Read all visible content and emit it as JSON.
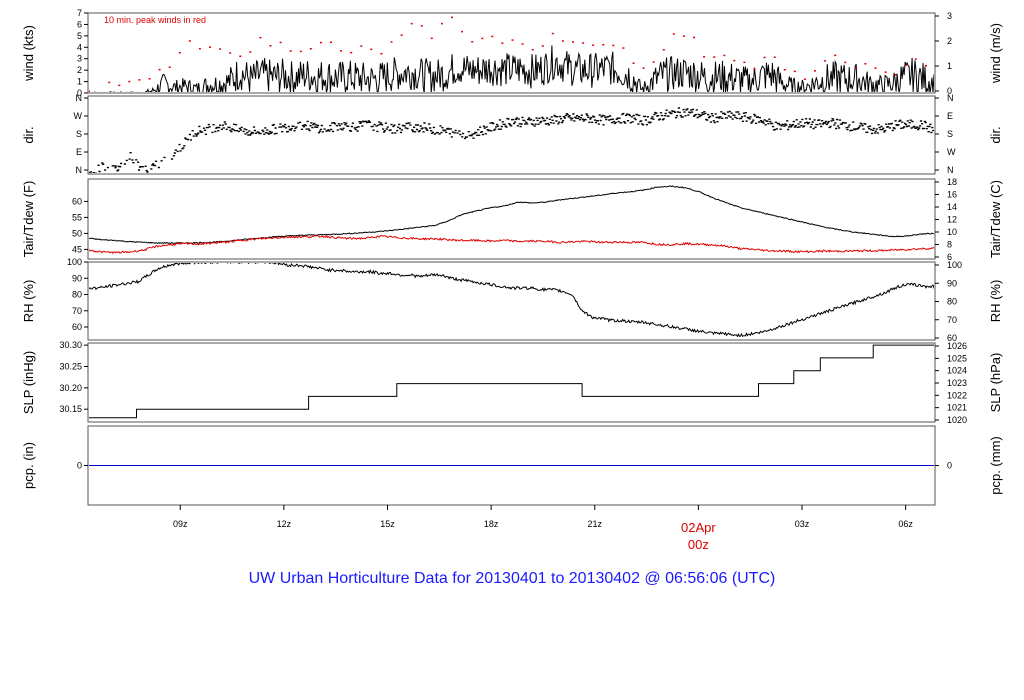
{
  "title": "UW Urban Horticulture Data for 20130401  to  20130402 @ 06:56:06  (UTC)",
  "colors": {
    "main": "#000000",
    "accent": "#e00000",
    "baseline": "#0000cc",
    "title": "#1a1aff",
    "frame": "#555555"
  },
  "chart_data": [
    {
      "type": "line",
      "panel": "wind",
      "ylabel_left": "wind (kts)",
      "ylabel_right": "wind (m/s)",
      "annotation": "10 min. peak winds in red",
      "ylim": [
        0,
        7
      ],
      "ticks_left": [
        "0",
        "1",
        "2",
        "3",
        "4",
        "5",
        "6",
        "7"
      ],
      "ticks_right": [
        "0",
        "1",
        "2",
        "3"
      ],
      "series": [
        {
          "values": [
            0,
            0,
            0,
            0,
            0,
            0,
            0.2,
            0.8,
            0.5,
            0.6,
            0.4,
            0.7,
            0.8,
            1.0,
            1.8,
            1.2,
            1.6,
            1.4,
            1.5,
            1.3,
            1.6,
            1.4,
            1.5,
            1.3,
            1.4,
            1.3,
            1.2,
            1.3,
            1.6,
            1.8,
            1.8,
            1.5,
            1.5,
            1.7,
            2.3,
            2.0,
            2.0,
            2.2,
            2.1,
            2.0,
            2.1,
            1.9,
            2.2,
            2.8,
            2.3,
            2.0,
            2.0,
            2.0,
            2.2,
            1.9,
            1.5,
            0.3,
            1.0,
            1.6,
            1.7,
            1.8,
            1.6,
            1.3,
            1.4,
            1.3,
            1.2,
            1.0,
            1.5,
            1.6,
            0.8,
            0.6,
            0.5,
            0.9,
            1.2,
            1.3,
            1.2,
            1.2,
            0.8,
            0.7,
            0.8,
            1.3,
            1.6,
            1.2,
            0.8
          ]
        },
        {
          "name": "10 min. peak winds",
          "values": [
            0,
            0,
            0.6,
            0.8,
            0.8,
            0.8,
            1.5,
            2.0,
            3.0,
            4.2,
            4.0,
            3.6,
            3.8,
            3.2,
            3.6,
            4.0,
            4.6,
            4.2,
            4.2,
            3.8,
            4.2,
            4.0,
            4.5,
            3.5,
            3.6,
            3.8,
            3.6,
            3.6,
            4.3,
            5.0,
            6.0,
            5.2,
            5.0,
            6.7,
            6.0,
            4.8,
            4.6,
            5.0,
            4.3,
            4.3,
            4.3,
            3.8,
            4.6,
            5.5,
            4.6,
            4.2,
            4.0,
            3.6,
            4.6,
            4.2,
            3.0,
            2.0,
            3.0,
            4.2,
            5.0,
            5.2,
            4.2,
            3.0,
            3.5,
            3.5,
            2.8,
            2.0,
            2.8,
            3.0,
            2.0,
            1.5,
            1.5,
            2.0,
            2.6,
            3.0,
            2.5,
            2.5,
            2.0,
            1.6,
            1.6,
            2.5,
            3.0,
            2.6,
            2.0
          ]
        }
      ]
    },
    {
      "type": "scatter",
      "panel": "dir",
      "ylabel_left": "dir.",
      "ylabel_right": "dir.",
      "ylim": [
        0,
        360
      ],
      "ticks_left": [
        "N",
        "E",
        "S",
        "W",
        "N"
      ],
      "ticks_right": [
        "N",
        "W",
        "S",
        "E",
        "N"
      ],
      "series": [
        {
          "values": [
            0,
            40,
            20,
            90,
            30,
            40,
            80,
            130,
            200,
            210,
            230,
            210,
            200,
            200,
            210,
            220,
            230,
            220,
            210,
            230,
            220,
            230,
            220,
            210,
            220,
            220,
            210,
            200,
            190,
            190,
            210,
            230,
            250,
            240,
            250,
            250,
            260,
            260,
            260,
            250,
            260,
            260,
            250,
            270,
            280,
            290,
            280,
            260,
            270,
            270,
            260,
            250,
            220,
            230,
            240,
            230,
            240,
            230,
            220,
            210,
            210,
            230,
            230,
            230,
            200
          ]
        }
      ]
    },
    {
      "type": "line",
      "panel": "temp",
      "ylabel_left": "Tair/Tdew (F)",
      "ylabel_right": "Tair/Tdew (C)",
      "ylim": [
        42,
        67
      ],
      "ticks_left": [
        "45",
        "50",
        "55",
        "60"
      ],
      "ticks_right": [
        "6",
        "8",
        "10",
        "12",
        "14",
        "16",
        "18"
      ],
      "series": [
        {
          "name": "Tair",
          "values": [
            48.5,
            48,
            47.8,
            47.4,
            47.2,
            47,
            47,
            47,
            47.1,
            47.2,
            47.6,
            48,
            48.4,
            48.8,
            49.1,
            49.3,
            49.5,
            49.6,
            49.8,
            50,
            50.3,
            50.6,
            51,
            51.5,
            52,
            52.5,
            54,
            56,
            57,
            58,
            58.6,
            59.8,
            59.5,
            59.8,
            60.5,
            61,
            61.5,
            62,
            62.6,
            63,
            63.5,
            64.5,
            64.7,
            64.3,
            63,
            61.2,
            59.5,
            58,
            57,
            56,
            55,
            54,
            53,
            52,
            51.2,
            50.5,
            50,
            49.5,
            49,
            49.2,
            49.8,
            50
          ]
        },
        {
          "name": "Tdew",
          "values": [
            44.8,
            44.2,
            44,
            44.2,
            44.8,
            46,
            46.5,
            46.8,
            46.7,
            47,
            47.3,
            47.8,
            48.2,
            48.5,
            48.8,
            48.9,
            49,
            49.1,
            48.6,
            48.4,
            48.5,
            49.1,
            48.8,
            48.5,
            48.3,
            48.3,
            48,
            47.8,
            47.8,
            47.6,
            47.8,
            47.5,
            47.6,
            47.5,
            47.2,
            47.4,
            47.5,
            47.2,
            47.3,
            47.2,
            47.2,
            46.6,
            46.5,
            46.8,
            46.6,
            46.4,
            46,
            45.2,
            45,
            44.6,
            44.5,
            44.3,
            44.3,
            44.5,
            44.4,
            44.5,
            44.6,
            44.6,
            44.8,
            45,
            45.2,
            45.4
          ]
        }
      ]
    },
    {
      "type": "line",
      "panel": "rh",
      "ylabel_left": "RH (%)",
      "ylabel_right": "RH (%)",
      "ylim": [
        52,
        100
      ],
      "ticks_left": [
        "60",
        "70",
        "80",
        "90",
        "100"
      ],
      "ticks_right": [
        "60",
        "70",
        "80",
        "90",
        "100"
      ],
      "series": [
        {
          "values": [
            84,
            84,
            85,
            86,
            87,
            88,
            92,
            96,
            98,
            99,
            99.5,
            100,
            100,
            100,
            100,
            100,
            100,
            100,
            100,
            99,
            98,
            98,
            97,
            96,
            95,
            95,
            94,
            94,
            94,
            93,
            93,
            92,
            92,
            91,
            92,
            92,
            90,
            89,
            88,
            87,
            86,
            85,
            84,
            84,
            84,
            83,
            83,
            82,
            80,
            70,
            66,
            65,
            64,
            64,
            63,
            63,
            62,
            61,
            60,
            59,
            58,
            57,
            56,
            56,
            55,
            55,
            56,
            57,
            59,
            61,
            63,
            65,
            67,
            69,
            71,
            73,
            75,
            77,
            79,
            81,
            84,
            86,
            86,
            85,
            85
          ]
        }
      ]
    },
    {
      "type": "line",
      "panel": "slp",
      "ylabel_left": "SLP (inHg)",
      "ylabel_right": "SLP (hPa)",
      "ylim": [
        30.12,
        30.305
      ],
      "ticks_left": [
        "30.15",
        "30.20",
        "30.25",
        "30.30"
      ],
      "ticks_right": [
        "1020",
        "1021",
        "1022",
        "1023",
        "1024",
        "1025",
        "1026"
      ],
      "series": [
        {
          "x": [
            0,
            5.5,
            5.5,
            25,
            25,
            35,
            35,
            56,
            56,
            76,
            76,
            80,
            80,
            83,
            83,
            89,
            89,
            96
          ],
          "values": [
            30.13,
            30.13,
            30.15,
            30.15,
            30.18,
            30.18,
            30.21,
            30.21,
            30.18,
            30.18,
            30.21,
            30.21,
            30.24,
            30.24,
            30.27,
            30.27,
            30.3,
            30.3
          ]
        }
      ]
    },
    {
      "type": "line",
      "panel": "pcp",
      "ylabel_left": "pcp. (in)",
      "ylabel_right": "pcp. (mm)",
      "ticks_left": [
        "0"
      ],
      "ticks_right": [
        "0"
      ],
      "series": [
        {
          "values": [
            0,
            0
          ]
        }
      ]
    }
  ],
  "x_axis": {
    "ticks": [
      {
        "label": "09z",
        "hour": 9
      },
      {
        "label": "12z",
        "hour": 12
      },
      {
        "label": "15z",
        "hour": 15
      },
      {
        "label": "18z",
        "hour": 18
      },
      {
        "label": "21z",
        "hour": 21
      },
      {
        "label": "02Apr",
        "sub": "00z",
        "hour": 24,
        "highlight": true
      },
      {
        "label": "03z",
        "hour": 27
      },
      {
        "label": "06z",
        "hour": 30
      }
    ]
  }
}
